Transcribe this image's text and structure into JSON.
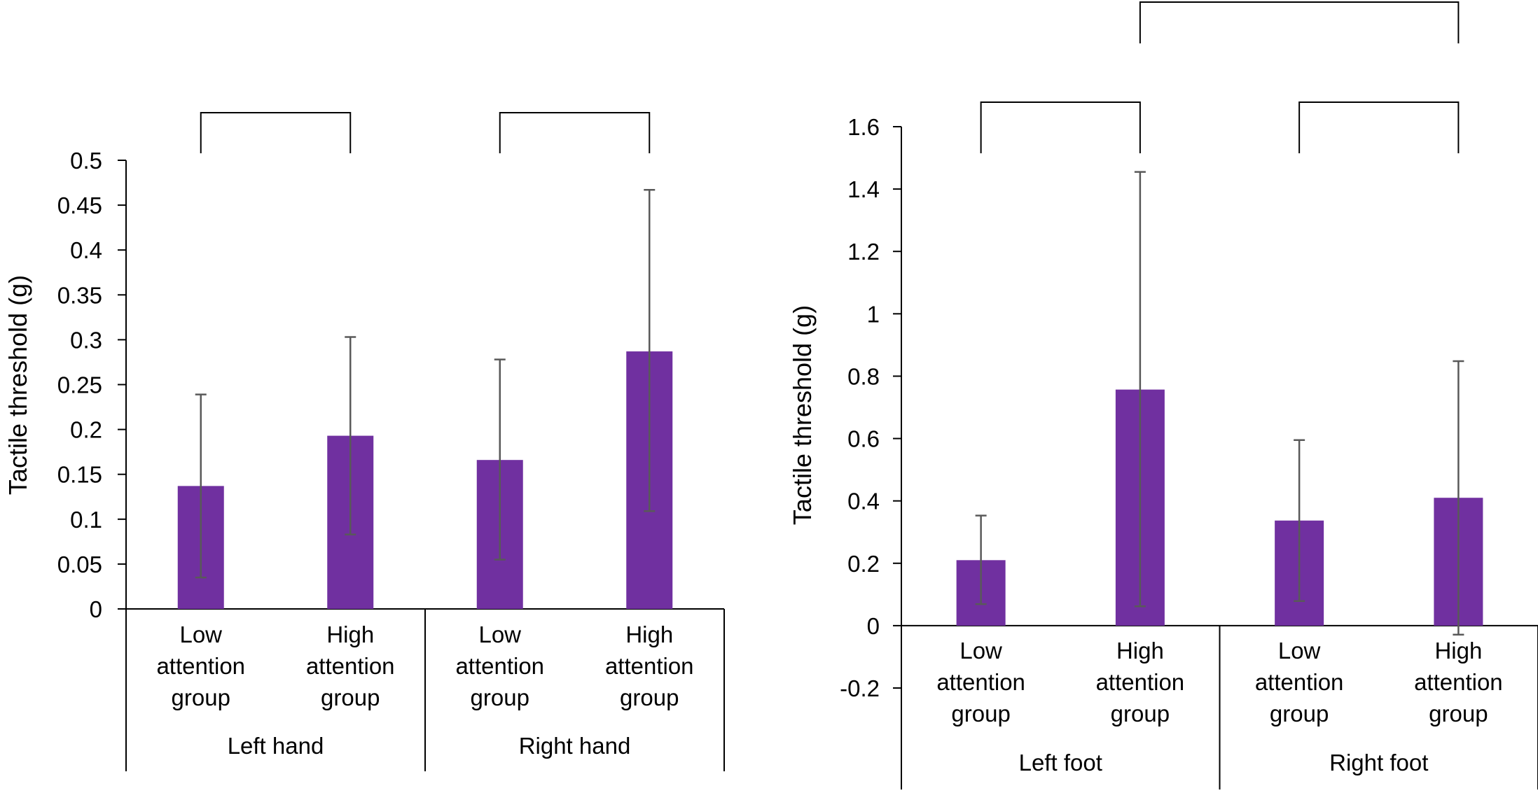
{
  "chart_data": [
    {
      "type": "bar",
      "title": "",
      "ylabel": "Tactile threshold (g)",
      "ylim": [
        0,
        0.5
      ],
      "yticks": [
        "0",
        "0.05",
        "0.1",
        "0.15",
        "0.2",
        "0.25",
        "0.3",
        "0.35",
        "0.4",
        "0.45",
        "0.5"
      ],
      "tick_values": [
        0,
        0.05,
        0.1,
        0.15,
        0.2,
        0.25,
        0.3,
        0.35,
        0.4,
        0.45,
        0.5
      ],
      "groups": [
        "Left hand",
        "Right hand"
      ],
      "category_lines": [
        [
          "Low",
          "attention",
          "group"
        ],
        [
          "High",
          "attention",
          "group"
        ],
        [
          "Low",
          "attention",
          "group"
        ],
        [
          "High",
          "attention",
          "group"
        ]
      ],
      "values": [
        0.137,
        0.193,
        0.166,
        0.287
      ],
      "err_upper": [
        0.239,
        0.303,
        0.278,
        0.467
      ],
      "err_lower": [
        0.035,
        0.083,
        0.055,
        0.109
      ],
      "bar_color": "#7030a0",
      "error_color": "#595959",
      "significance_brackets": [
        [
          0,
          1
        ],
        [
          2,
          3
        ]
      ]
    },
    {
      "type": "bar",
      "title": "",
      "ylabel": "Tactile threshold (g)",
      "ylim": [
        -0.2,
        1.6
      ],
      "yticks": [
        "-0.2",
        "0",
        "0.2",
        "0.4",
        "0.6",
        "0.8",
        "1",
        "1.2",
        "1.4",
        "1.6"
      ],
      "tick_values": [
        -0.2,
        0,
        0.2,
        0.4,
        0.6,
        0.8,
        1,
        1.2,
        1.4,
        1.6
      ],
      "groups": [
        "Left foot",
        "Right foot"
      ],
      "category_lines": [
        [
          "Low",
          "attention",
          "group"
        ],
        [
          "High",
          "attention",
          "group"
        ],
        [
          "Low",
          "attention",
          "group"
        ],
        [
          "High",
          "attention",
          "group"
        ]
      ],
      "values": [
        0.21,
        0.757,
        0.337,
        0.41
      ],
      "err_upper": [
        0.353,
        1.455,
        0.595,
        0.848
      ],
      "err_lower": [
        0.069,
        0.062,
        0.079,
        -0.029
      ],
      "bar_color": "#7030a0",
      "error_color": "#595959",
      "significance_brackets": [
        [
          0,
          1
        ],
        [
          2,
          3
        ],
        [
          1,
          3
        ]
      ]
    }
  ]
}
